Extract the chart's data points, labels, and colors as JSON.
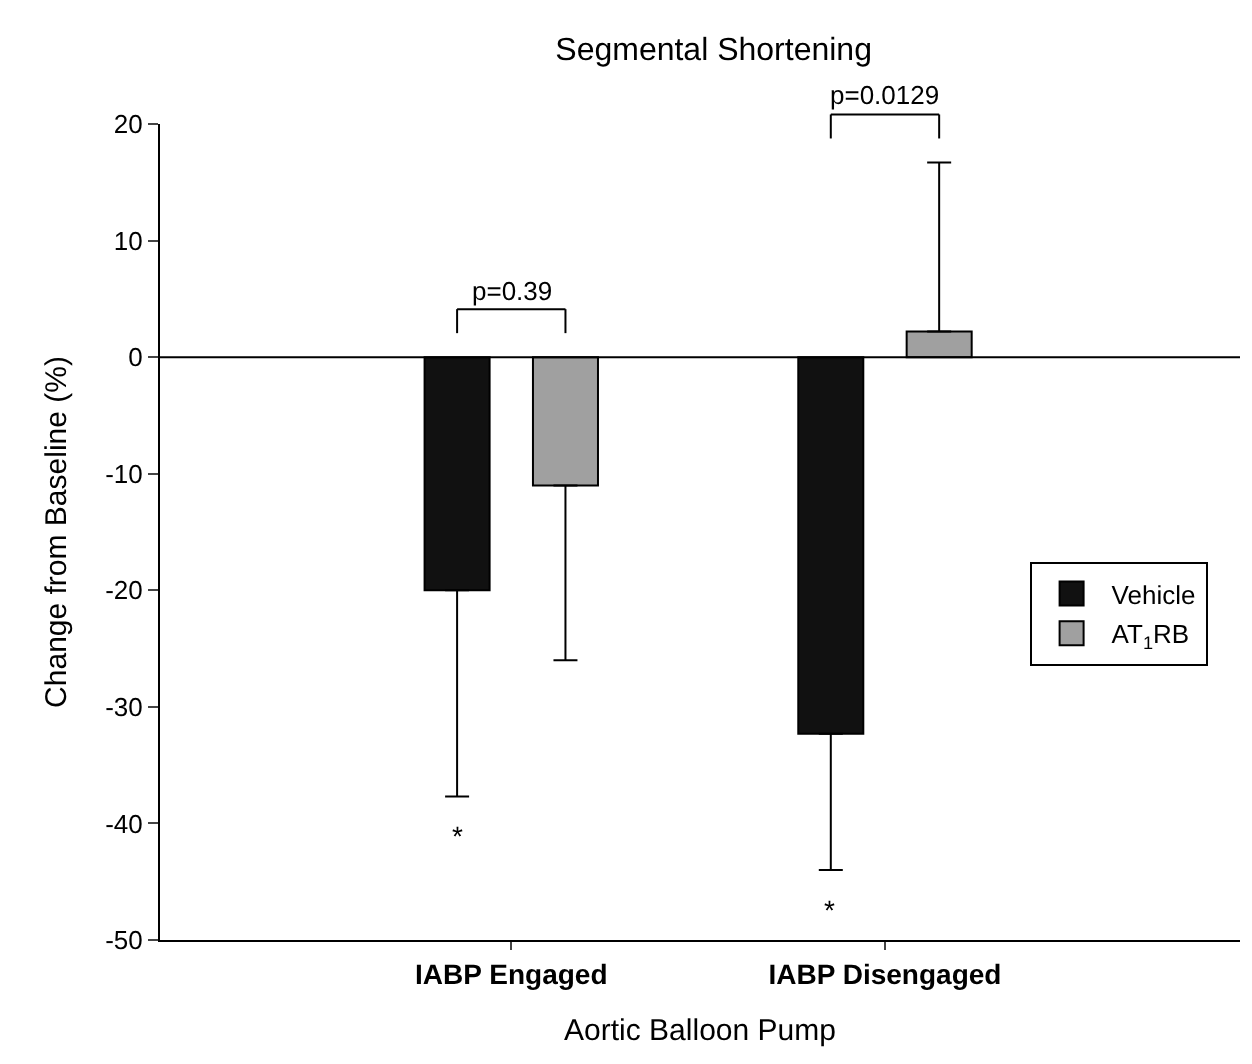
{
  "chart_data": {
    "type": "bar",
    "title": "Segmental Shortening",
    "xlabel": "Aortic Balloon Pump",
    "ylabel": "Change from Baseline (%)",
    "categories": [
      "IABP Engaged",
      "IABP Disengaged"
    ],
    "series": [
      {
        "name": "Vehicle",
        "color": "#111111",
        "values": [
          -20,
          -32.3
        ],
        "errors": [
          [
            -37.7,
            -20
          ],
          [
            -44,
            -32.3
          ]
        ]
      },
      {
        "name": "AT$_{1}$RB",
        "color": "#a0a0a0",
        "values": [
          -11,
          2.2
        ],
        "errors": [
          [
            -26,
            -11
          ],
          [
            2.2,
            16.7
          ]
        ]
      }
    ],
    "ylim": [
      -50,
      20
    ],
    "yticks": [
      -50,
      -40,
      -30,
      -20,
      -10,
      0,
      10,
      20
    ],
    "legend": "right",
    "ref_lines": [
      {
        "axis": "y",
        "value": 0,
        "color": "#000000"
      }
    ],
    "annotations": [
      "p=0.39",
      "p=0.0129",
      "*",
      "*"
    ]
  }
}
